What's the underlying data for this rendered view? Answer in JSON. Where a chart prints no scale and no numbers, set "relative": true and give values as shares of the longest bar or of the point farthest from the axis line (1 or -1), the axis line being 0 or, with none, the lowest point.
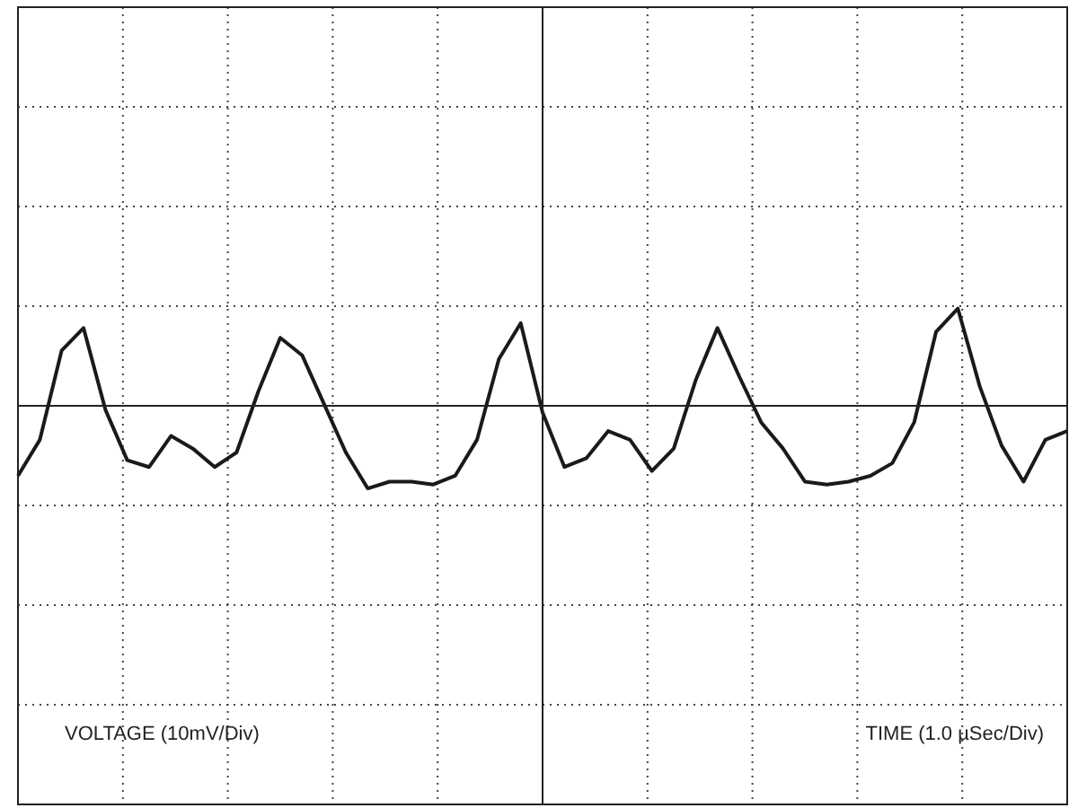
{
  "chart_data": {
    "type": "line",
    "relative": true,
    "grid": true,
    "marker": "none",
    "line_style": "solid",
    "annotations": [
      "VOLTAGE (10mV/Div)",
      "TIME (1.0 µSec/Div)"
    ],
    "categories": [
      null,
      null,
      null,
      null,
      null,
      null,
      null,
      null,
      null,
      null,
      null,
      null,
      null,
      null,
      null,
      null,
      null,
      null,
      null,
      null,
      null,
      null,
      null,
      null,
      null,
      null,
      null,
      null,
      null,
      null,
      null,
      null,
      null,
      null,
      null,
      null,
      null,
      null,
      null,
      null,
      null,
      null,
      null,
      null,
      null,
      null,
      null,
      null,
      null
    ],
    "series": [
      {
        "color": "#1a1a1a",
        "values": [
          -0.72,
          -0.35,
          0.57,
          0.8,
          -0.04,
          -0.56,
          -0.63,
          -0.31,
          -0.44,
          -0.63,
          -0.48,
          0.15,
          0.7,
          0.52,
          0.02,
          -0.48,
          -0.85,
          -0.78,
          -0.78,
          -0.81,
          -0.72,
          -0.35,
          0.48,
          0.85,
          -0.07,
          -0.63,
          -0.54,
          -0.26,
          -0.35,
          -0.67,
          -0.44,
          0.26,
          0.8,
          0.3,
          -0.17,
          -0.44,
          -0.78,
          -0.81,
          -0.78,
          -0.72,
          -0.59,
          -0.17,
          0.76,
          1.0,
          0.2,
          -0.41,
          -0.78,
          -0.35,
          -0.26
        ]
      }
    ]
  }
}
